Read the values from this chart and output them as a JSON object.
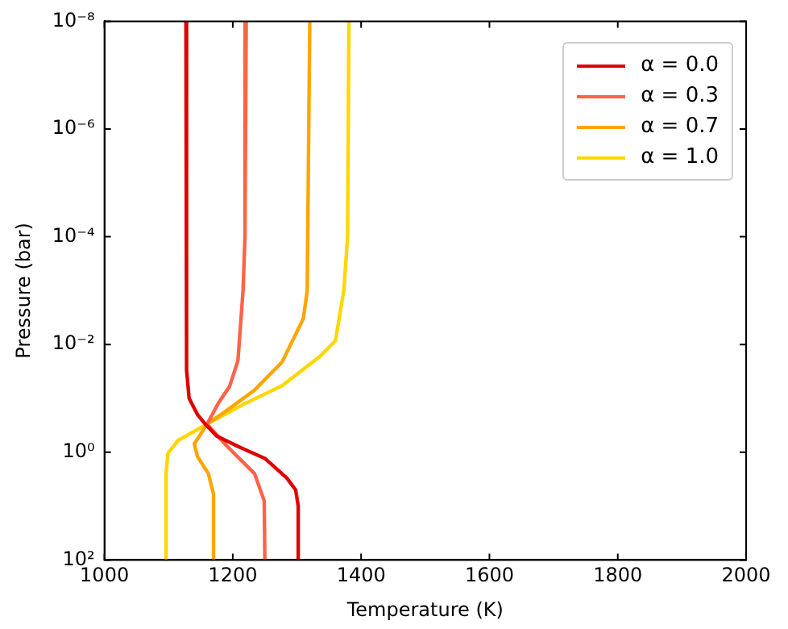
{
  "chart_data": {
    "type": "line",
    "xlabel": "Temperature (K)",
    "ylabel": "Pressure (bar)",
    "xlim": [
      1000,
      2000
    ],
    "xticks": [
      1000,
      1200,
      1400,
      1600,
      1800,
      2000
    ],
    "ylim": [
      100,
      1e-08
    ],
    "log": "y",
    "grid": false,
    "legend": "top right",
    "yticks": [
      {
        "value": 100,
        "label": "10²"
      },
      {
        "value": 1,
        "label": "10⁰"
      },
      {
        "value": 0.01,
        "label": "10⁻²"
      },
      {
        "value": 0.0001,
        "label": "10⁻⁴"
      },
      {
        "value": 1e-06,
        "label": "10⁻⁶"
      },
      {
        "value": 1e-08,
        "label": "10⁻⁸"
      }
    ],
    "series": [
      {
        "name": "α = 0.0",
        "color": "#e00000",
        "x": [
          1127,
          1128,
          1132,
          1145,
          1157,
          1175,
          1210,
          1250,
          1284,
          1298,
          1302,
          1302
        ],
        "values": [
          1e-08,
          0.03,
          0.1,
          0.2,
          0.3,
          0.5,
          0.8,
          1.3,
          3,
          5,
          10,
          100
        ]
      },
      {
        "name": "α = 0.3",
        "color": "#ff6347",
        "x": [
          1221,
          1219,
          1216,
          1208,
          1195,
          1178,
          1160,
          1190,
          1234,
          1249,
          1250
        ],
        "values": [
          1e-08,
          0.0001,
          0.001,
          0.02,
          0.06,
          0.12,
          0.3,
          0.75,
          2.5,
          8,
          100
        ]
      },
      {
        "name": "α = 0.7",
        "color": "#ffa500",
        "x": [
          1320,
          1316,
          1310,
          1277,
          1234,
          1190,
          1160,
          1140,
          1145,
          1162,
          1170,
          1170
        ],
        "values": [
          1e-08,
          0.001,
          0.0033,
          0.021,
          0.07,
          0.17,
          0.3,
          0.7,
          1.2,
          2.5,
          6,
          100
        ]
      },
      {
        "name": "α = 1.0",
        "color": "#ffd700",
        "x": [
          1381,
          1379,
          1373,
          1360,
          1335,
          1277,
          1216,
          1160,
          1115,
          1099,
          1096,
          1096
        ],
        "values": [
          1e-08,
          0.0001,
          0.001,
          0.0085,
          0.017,
          0.058,
          0.13,
          0.3,
          0.6,
          1.05,
          2.5,
          100
        ]
      }
    ]
  }
}
